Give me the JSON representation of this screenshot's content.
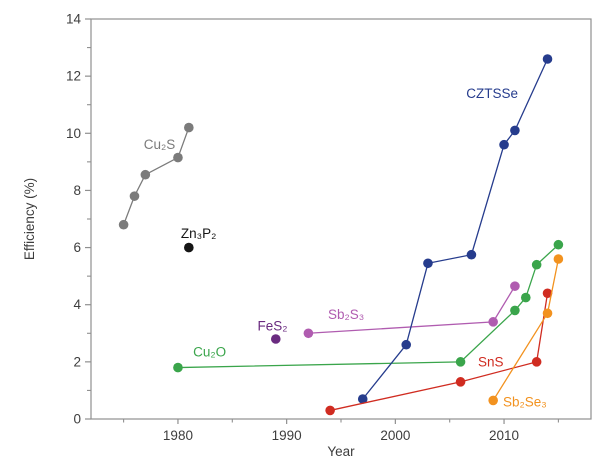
{
  "chart_data": {
    "type": "line",
    "title": "",
    "xlabel": "Year",
    "ylabel": "Efficiency (%)",
    "xlim": [
      1972,
      2018
    ],
    "ylim": [
      0,
      14
    ],
    "x_major_ticks": [
      1980,
      1990,
      2000,
      2010
    ],
    "x_minor_ticks": [
      1975,
      1985,
      1995,
      2005,
      2015
    ],
    "y_major_ticks": [
      0,
      2,
      4,
      6,
      8,
      10,
      12,
      14
    ],
    "y_minor_ticks": [
      1,
      3,
      5,
      7,
      9,
      11,
      13
    ],
    "grid": false,
    "legend": "inline-colored-labels",
    "axis_color": "#8f8f8f",
    "text_color": "#3d3d3d",
    "background_color": "#ffffff",
    "marker": "circle",
    "series": [
      {
        "name": "Cu2S",
        "label": "Cu₂S",
        "color": "#7b7b7b",
        "points": [
          [
            1975,
            6.8
          ],
          [
            1976,
            7.8
          ],
          [
            1977,
            8.55
          ],
          [
            1980,
            9.15
          ],
          [
            1981,
            10.2
          ]
        ],
        "label_pos": [
          1978.3,
          9.6
        ],
        "label_anchor": "middle"
      },
      {
        "name": "Zn3P2",
        "label": "Zn₃P₂",
        "color": "#151515",
        "points": [
          [
            1981,
            6.0
          ]
        ],
        "label_pos": [
          1981.9,
          6.5
        ],
        "label_anchor": "middle"
      },
      {
        "name": "Cu2O",
        "label": "Cu₂O",
        "color": "#3aa54b",
        "points": [
          [
            1980,
            1.8
          ],
          [
            2006,
            2.0
          ],
          [
            2011,
            3.8
          ],
          [
            2012,
            4.25
          ],
          [
            2013,
            5.4
          ],
          [
            2015,
            6.1
          ]
        ],
        "label_pos": [
          1981.4,
          2.35
        ],
        "label_anchor": "start"
      },
      {
        "name": "FeS2",
        "label": "FeS₂",
        "color": "#6a2b80",
        "points": [
          [
            1989,
            2.8
          ]
        ],
        "label_pos": [
          1988.7,
          3.25
        ],
        "label_anchor": "middle"
      },
      {
        "name": "Sb2S3",
        "label": "Sb₂S₃",
        "color": "#b05cb0",
        "points": [
          [
            1992,
            3.0
          ],
          [
            2009,
            3.4
          ],
          [
            2011,
            4.65
          ]
        ],
        "label_pos": [
          1993.8,
          3.65
        ],
        "label_anchor": "start"
      },
      {
        "name": "CZTSSe",
        "label": "CZTSSe",
        "color": "#263c8d",
        "points": [
          [
            1997,
            0.7
          ],
          [
            2001,
            2.6
          ],
          [
            2003,
            5.45
          ],
          [
            2007,
            5.75
          ],
          [
            2010,
            9.6
          ],
          [
            2011,
            10.1
          ],
          [
            2014,
            12.6
          ]
        ],
        "label_pos": [
          2008.9,
          11.4
        ],
        "label_anchor": "middle"
      },
      {
        "name": "SnS",
        "label": "SnS",
        "color": "#d02c21",
        "points": [
          [
            1994,
            0.3
          ],
          [
            2006,
            1.3
          ],
          [
            2013,
            2.0
          ],
          [
            2014,
            4.4
          ]
        ],
        "label_pos": [
          2007.6,
          2.0
        ],
        "label_anchor": "start"
      },
      {
        "name": "Sb2Se3",
        "label": "Sb₂Se₃",
        "color": "#f2921f",
        "points": [
          [
            2009,
            0.65
          ],
          [
            2014,
            3.7
          ],
          [
            2015,
            5.6
          ]
        ],
        "label_pos": [
          2009.9,
          0.6
        ],
        "label_anchor": "start"
      }
    ]
  }
}
